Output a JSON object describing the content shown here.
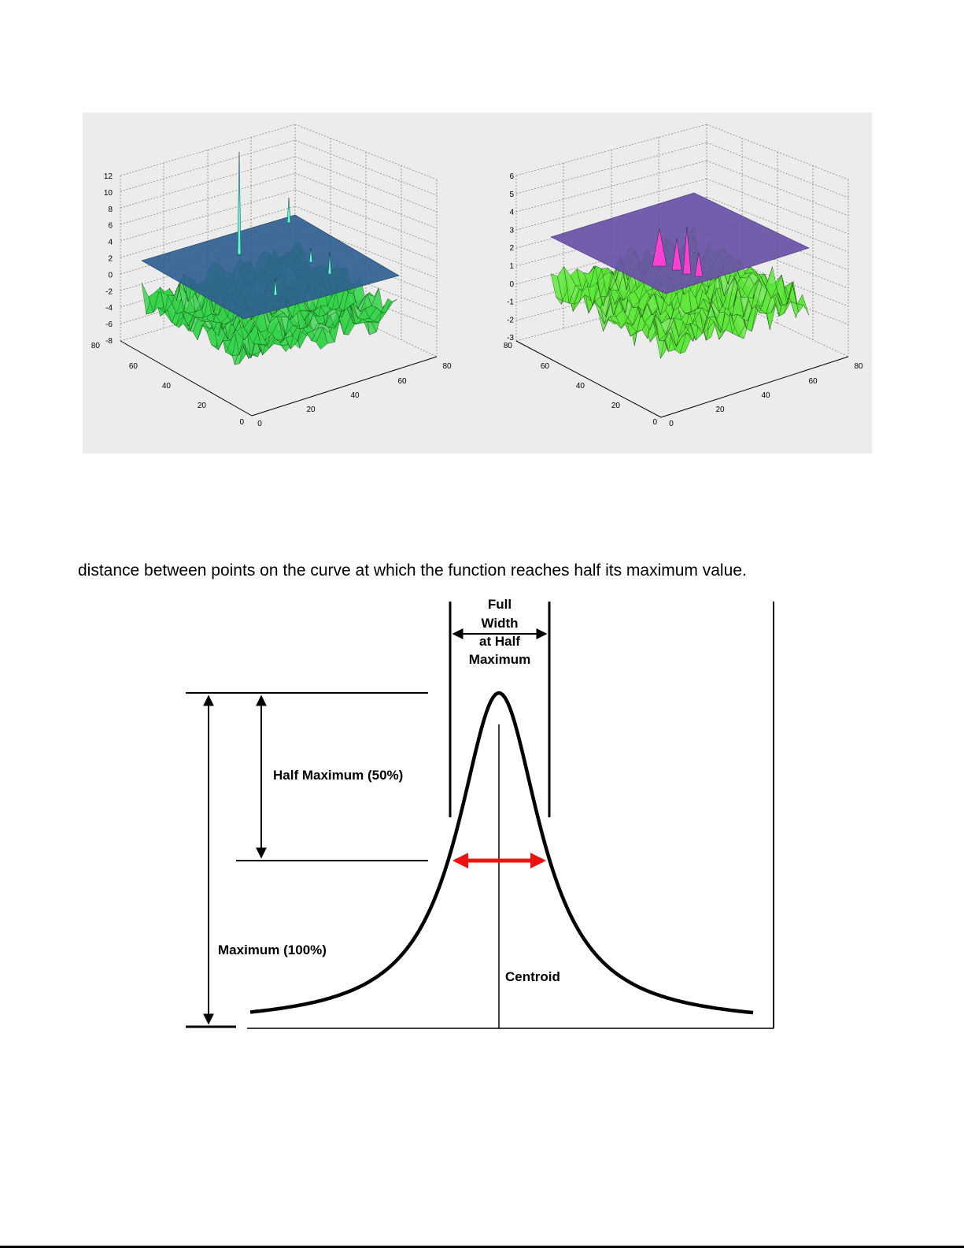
{
  "surface_plots": [
    {
      "z_ticks": [
        "12",
        "10",
        "8",
        "6",
        "4",
        "2",
        "0",
        "-2",
        "-4",
        "-6",
        "-8"
      ],
      "y_ticks": [
        "80",
        "60",
        "40",
        "20",
        "0"
      ],
      "x_ticks": [
        "0",
        "20",
        "40",
        "60",
        "80"
      ],
      "colors": {
        "plane": "#2f5f8f",
        "surface": "#35d44a",
        "spike": "#5fffd0"
      }
    },
    {
      "z_ticks": [
        "6",
        "5",
        "4",
        "3",
        "2",
        "1",
        "0",
        "-1",
        "-2",
        "-3"
      ],
      "y_ticks": [
        "80",
        "60",
        "40",
        "20",
        "0"
      ],
      "x_ticks": [
        "0",
        "20",
        "40",
        "60",
        "80"
      ],
      "colors": {
        "plane": "#6a52a8",
        "surface": "#5ee83a",
        "spike": "#ff40d0"
      }
    }
  ],
  "body_text": "distance between points on the curve at which the function reaches half its maximum value.",
  "diagram": {
    "label_fwhm_line1": "Full",
    "label_fwhm_line2": "Width",
    "label_fwhm_line3": "at Half",
    "label_fwhm_line4": "Maximum",
    "label_half_max": "Half Maximum (50%)",
    "label_max": "Maximum (100%)",
    "label_centroid": "Centroid",
    "colors": {
      "curve": "#000000",
      "width_arrow": "#ee1111"
    }
  }
}
